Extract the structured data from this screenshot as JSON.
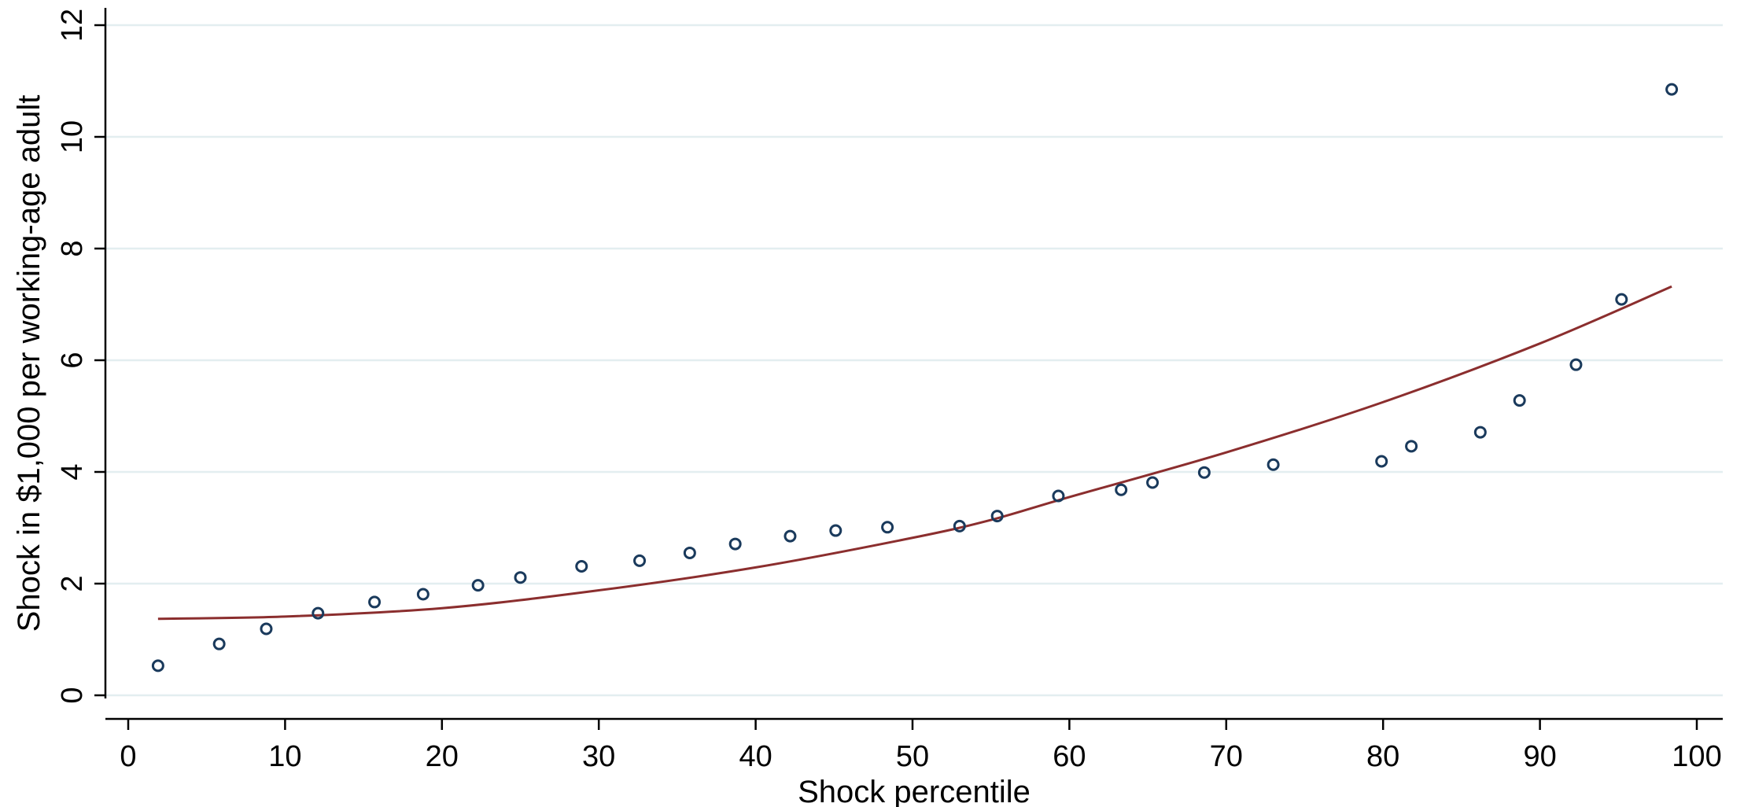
{
  "chart_data": {
    "type": "scatter",
    "xlabel": "Shock percentile",
    "ylabel": "Shock in $1,000 per working-age adult",
    "xlim": [
      0,
      100
    ],
    "ylim": [
      0,
      12
    ],
    "x_ticks": [
      0,
      10,
      20,
      30,
      40,
      50,
      60,
      70,
      80,
      90,
      100
    ],
    "y_ticks": [
      0,
      2,
      4,
      6,
      8,
      10,
      12
    ],
    "grid": "horizontal",
    "series": [
      {
        "kind": "scatter",
        "color": "#1a3a5c",
        "points": [
          [
            1.9,
            0.53
          ],
          [
            5.8,
            0.92
          ],
          [
            8.8,
            1.19
          ],
          [
            12.1,
            1.47
          ],
          [
            15.7,
            1.67
          ],
          [
            18.8,
            1.81
          ],
          [
            22.3,
            1.97
          ],
          [
            25.0,
            2.11
          ],
          [
            28.9,
            2.31
          ],
          [
            32.6,
            2.41
          ],
          [
            35.8,
            2.55
          ],
          [
            38.7,
            2.71
          ],
          [
            42.2,
            2.85
          ],
          [
            45.1,
            2.95
          ],
          [
            48.4,
            3.01
          ],
          [
            53.0,
            3.03
          ],
          [
            55.4,
            3.21
          ],
          [
            59.3,
            3.57
          ],
          [
            63.3,
            3.68
          ],
          [
            65.3,
            3.81
          ],
          [
            68.6,
            3.99
          ],
          [
            73.0,
            4.13
          ],
          [
            79.9,
            4.19
          ],
          [
            81.8,
            4.46
          ],
          [
            86.2,
            4.71
          ],
          [
            88.7,
            5.28
          ],
          [
            92.3,
            5.92
          ],
          [
            95.2,
            7.09
          ],
          [
            98.4,
            10.85
          ]
        ]
      },
      {
        "kind": "line",
        "color": "#8b2e2e",
        "fit": "quadratic",
        "points": [
          [
            1.9,
            1.37
          ],
          [
            10,
            1.41
          ],
          [
            20,
            1.56
          ],
          [
            30,
            1.88
          ],
          [
            40,
            2.29
          ],
          [
            50,
            2.82
          ],
          [
            55,
            3.14
          ],
          [
            60,
            3.55
          ],
          [
            70,
            4.35
          ],
          [
            80,
            5.25
          ],
          [
            90,
            6.3
          ],
          [
            98.4,
            7.32
          ]
        ]
      }
    ]
  }
}
